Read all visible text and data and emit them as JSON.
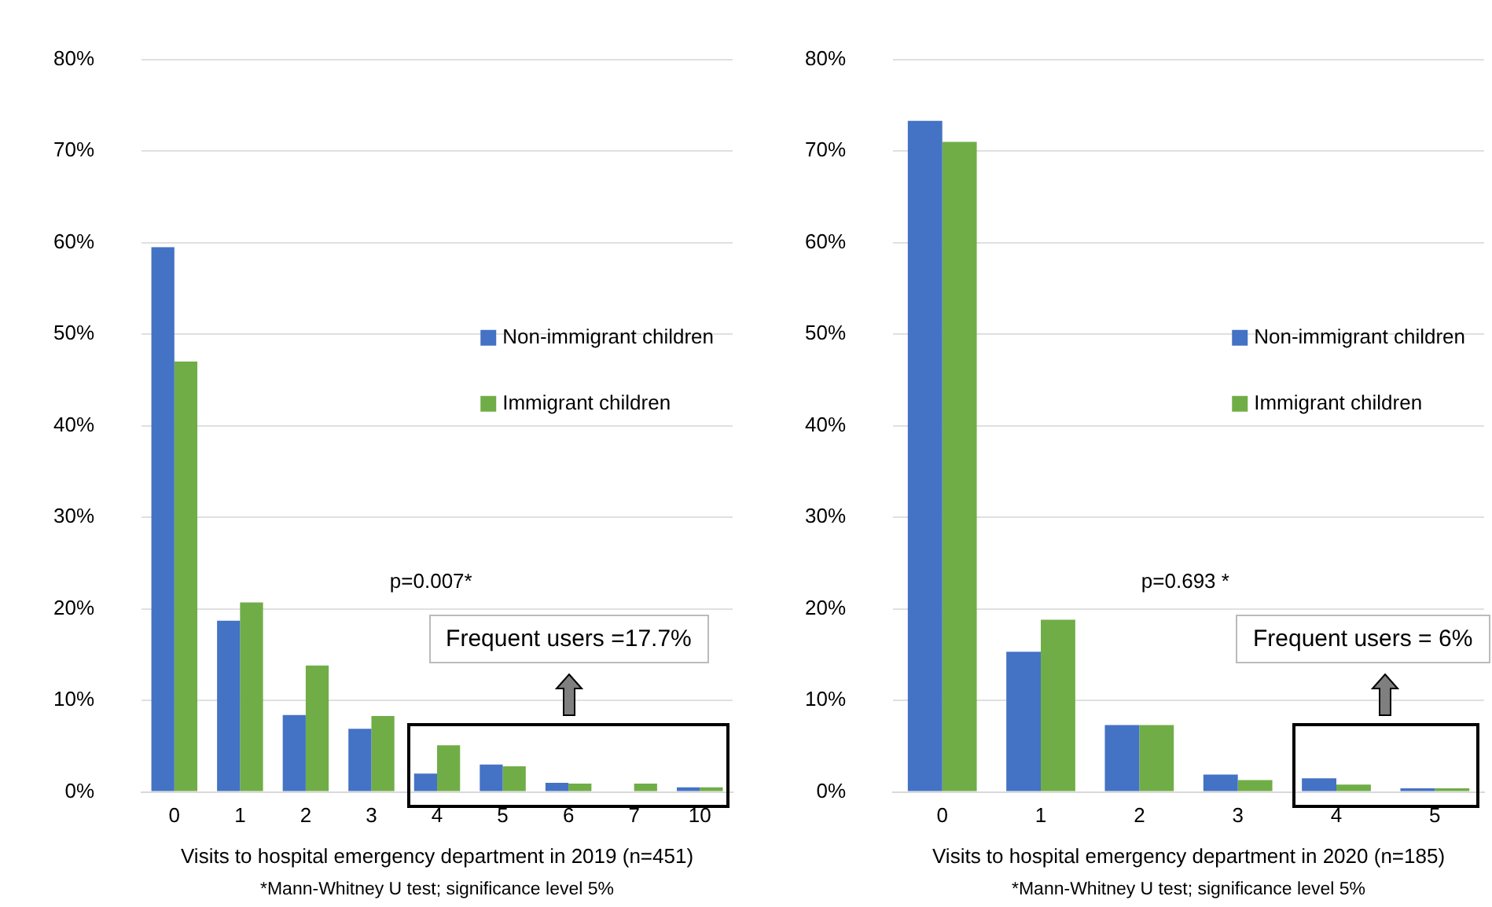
{
  "chart_data": [
    {
      "type": "bar",
      "xlabel": "Visits to hospital emergency department in 2019 (n=451)",
      "categories": [
        "0",
        "1",
        "2",
        "3",
        "4",
        "5",
        "6",
        "7",
        "10"
      ],
      "series": [
        {
          "name": "Non-immigrant children",
          "color": "#4472c4",
          "values": [
            59.5,
            18.7,
            8.4,
            6.9,
            2.0,
            3.0,
            1.0,
            0,
            0.5
          ]
        },
        {
          "name": "Immigrant children",
          "color": "#70ad47",
          "values": [
            47.0,
            20.7,
            13.8,
            8.3,
            5.1,
            2.8,
            0.9,
            0.9,
            0.5
          ]
        }
      ],
      "ylim": [
        0,
        80
      ],
      "yticks": [
        {
          "value": 0,
          "label": "0%"
        },
        {
          "value": 10,
          "label": "10%"
        },
        {
          "value": 20,
          "label": "20%"
        },
        {
          "value": 30,
          "label": "30%"
        },
        {
          "value": 40,
          "label": "40%"
        },
        {
          "value": 50,
          "label": "50%"
        },
        {
          "value": 60,
          "label": "60%"
        },
        {
          "value": 70,
          "label": "70%"
        },
        {
          "value": 80,
          "label": "80%"
        }
      ],
      "grid": "y",
      "legend": "right",
      "annotations": [
        "p=0.007*",
        "Frequent users =17.7%",
        "*Mann-Whitney U test; significance level 5%"
      ]
    },
    {
      "type": "bar",
      "xlabel": "Visits to hospital emergency department in 2020 (n=185)",
      "categories": [
        "0",
        "1",
        "2",
        "3",
        "4",
        "5"
      ],
      "series": [
        {
          "name": "Non-immigrant children",
          "color": "#4472c4",
          "values": [
            73.3,
            15.3,
            7.3,
            1.9,
            1.5,
            0.4
          ]
        },
        {
          "name": "Immigrant children",
          "color": "#70ad47",
          "values": [
            71.0,
            18.8,
            7.3,
            1.3,
            0.8,
            0.4
          ]
        }
      ],
      "ylim": [
        0,
        80
      ],
      "yticks": [
        {
          "value": 0,
          "label": "0%"
        },
        {
          "value": 10,
          "label": "10%"
        },
        {
          "value": 20,
          "label": "20%"
        },
        {
          "value": 30,
          "label": "30%"
        },
        {
          "value": 40,
          "label": "40%"
        },
        {
          "value": 50,
          "label": "50%"
        },
        {
          "value": 60,
          "label": "60%"
        },
        {
          "value": 70,
          "label": "70%"
        },
        {
          "value": 80,
          "label": "80%"
        }
      ],
      "grid": "y",
      "legend": "right",
      "annotations": [
        "p=0.693 *",
        "Frequent users = 6%",
        "*Mann-Whitney U test; significance level 5%"
      ]
    }
  ]
}
